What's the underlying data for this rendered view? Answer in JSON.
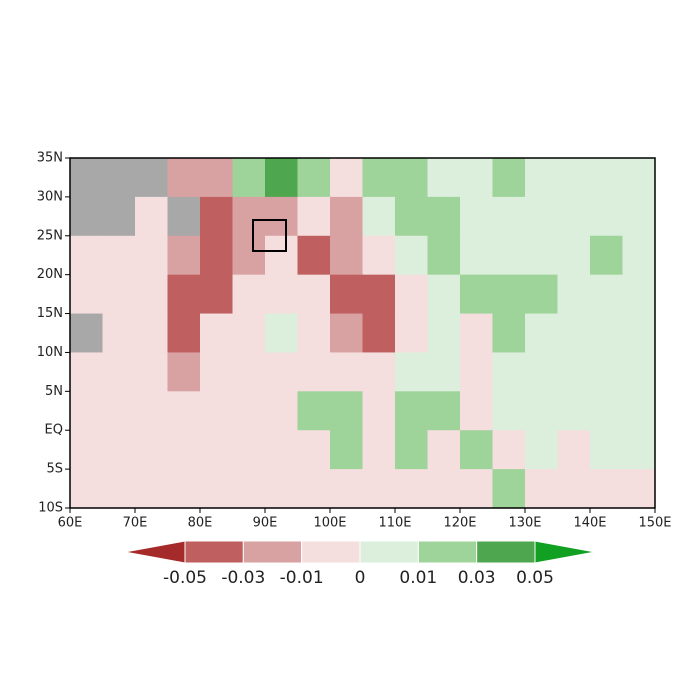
{
  "chart_data": {
    "type": "heatmap",
    "xlim": [
      60,
      150
    ],
    "ylim": [
      -10,
      35
    ],
    "xticks": [
      {
        "value": 60,
        "label": "60E"
      },
      {
        "value": 70,
        "label": "70E"
      },
      {
        "value": 80,
        "label": "80E"
      },
      {
        "value": 90,
        "label": "90E"
      },
      {
        "value": 100,
        "label": "100E"
      },
      {
        "value": 110,
        "label": "110E"
      },
      {
        "value": 120,
        "label": "120E"
      },
      {
        "value": 130,
        "label": "130E"
      },
      {
        "value": 140,
        "label": "140E"
      },
      {
        "value": 150,
        "label": "150E"
      }
    ],
    "yticks": [
      {
        "value": 35,
        "label": "35N"
      },
      {
        "value": 30,
        "label": "30N"
      },
      {
        "value": 25,
        "label": "25N"
      },
      {
        "value": 20,
        "label": "20N"
      },
      {
        "value": 15,
        "label": "15N"
      },
      {
        "value": 10,
        "label": "10N"
      },
      {
        "value": 5,
        "label": "5N"
      },
      {
        "value": 0,
        "label": "EQ"
      },
      {
        "value": -5,
        "label": "5S"
      },
      {
        "value": -10,
        "label": "10S"
      }
    ],
    "values": [
      [
        null,
        null,
        null,
        -0.02,
        -0.03,
        0.01,
        0.03,
        0.01,
        -0.01,
        0.01,
        0.01,
        0,
        0,
        0.01,
        0,
        0,
        0,
        0
      ],
      [
        null,
        null,
        -0.01,
        null,
        -0.04,
        -0.03,
        -0.02,
        -0.01,
        -0.02,
        0,
        0.01,
        0.02,
        0,
        0,
        0,
        0,
        0,
        0
      ],
      [
        -0.005,
        -0.01,
        -0.01,
        -0.03,
        -0.04,
        -0.03,
        -0.01,
        -0.04,
        -0.03,
        -0.01,
        0,
        0.01,
        0,
        0,
        0,
        0,
        0.01,
        0
      ],
      [
        -0.01,
        -0.01,
        -0.01,
        -0.04,
        -0.04,
        -0.01,
        -0.005,
        -0.01,
        -0.04,
        -0.04,
        -0.005,
        0,
        0.01,
        0.01,
        0.01,
        0,
        0,
        0
      ],
      [
        null,
        -0.01,
        -0.01,
        -0.04,
        -0.01,
        -0.005,
        0,
        -0.005,
        -0.02,
        -0.04,
        -0.005,
        0,
        -0.01,
        0.01,
        0,
        0,
        0,
        0
      ],
      [
        -0.005,
        -0.005,
        -0.01,
        -0.02,
        -0.01,
        -0.005,
        -0.005,
        -0.005,
        -0.01,
        -0.01,
        0,
        0,
        -0.01,
        0,
        0,
        0,
        0,
        0
      ],
      [
        -0.005,
        -0.005,
        -0.005,
        -0.005,
        -0.005,
        -0.005,
        -0.005,
        0.01,
        0.01,
        -0.01,
        0.01,
        0.01,
        -0.005,
        0,
        0,
        0,
        0,
        0
      ],
      [
        -0.005,
        -0.005,
        -0.005,
        -0.005,
        -0.005,
        -0.005,
        -0.005,
        -0.005,
        0.01,
        -0.01,
        0.01,
        -0.005,
        0.01,
        -0.005,
        0,
        -0.01,
        0,
        0
      ],
      [
        -0.005,
        -0.005,
        -0.005,
        -0.005,
        -0.005,
        -0.005,
        -0.005,
        -0.005,
        -0.005,
        -0.01,
        -0.01,
        -0.005,
        -0.005,
        0.01,
        -0.005,
        -0.005,
        -0.01,
        -0.005
      ]
    ],
    "levels": [
      -0.05,
      -0.03,
      -0.01,
      0,
      0.01,
      0.03,
      0.05
    ],
    "colors": [
      "#a52a2a",
      "#bf5f5f",
      "#d9a2a2",
      "#f4dede",
      "#dcefdc",
      "#9ed39a",
      "#4ea64e",
      "#11a022"
    ],
    "missing_color": "#a8a8a8"
  }
}
